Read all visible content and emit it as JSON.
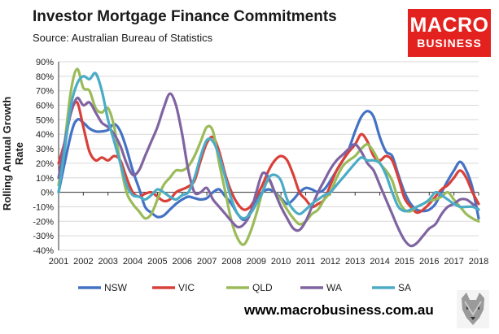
{
  "header": {
    "title": "Investor Mortgage Finance Commitments",
    "subtitle": "Source: Australian Bureau of Statistics"
  },
  "logo": {
    "line1": "MACRO",
    "line2": "BUSINESS"
  },
  "footer": {
    "url": "www.macrobusiness.com.au"
  },
  "colors": {
    "NSW": "#4472c4",
    "VIC": "#d9403a",
    "QLD": "#9bbb59",
    "WA": "#8064a2",
    "SA": "#4bacc6"
  },
  "chart_data": {
    "type": "line",
    "title": "Investor Mortgage Finance Commitments",
    "ylabel": "Rolling Annual Growth Rate",
    "xlabel": "",
    "xlim": [
      2001,
      2018
    ],
    "ylim": [
      -40,
      90
    ],
    "x_ticks": [
      "2001",
      "2002",
      "2003",
      "2004",
      "2005",
      "2006",
      "2007",
      "2008",
      "2009",
      "2010",
      "2011",
      "2012",
      "2013",
      "2014",
      "2015",
      "2016",
      "2017",
      "2018"
    ],
    "y_ticks": [
      "90%",
      "80%",
      "70%",
      "60%",
      "50%",
      "40%",
      "30%",
      "20%",
      "10%",
      "0%",
      "-10%",
      "-20%",
      "-30%",
      "-40%"
    ],
    "grid": "horizontal",
    "legend_position": "bottom",
    "series": [
      {
        "name": "NSW",
        "color": "#4472c4",
        "x": [
          2001,
          2001.5,
          2001.75,
          2002,
          2002.25,
          2002.5,
          2002.75,
          2003,
          2003.25,
          2003.5,
          2003.75,
          2004,
          2004.25,
          2004.5,
          2004.75,
          2005,
          2005.25,
          2005.5,
          2005.75,
          2006,
          2006.25,
          2006.5,
          2006.75,
          2007,
          2007.25,
          2007.5,
          2007.75,
          2008,
          2008.25,
          2008.5,
          2008.75,
          2009,
          2009.25,
          2009.5,
          2009.75,
          2010,
          2010.25,
          2010.5,
          2010.75,
          2011,
          2011.25,
          2011.5,
          2011.75,
          2012,
          2012.25,
          2012.5,
          2012.75,
          2013,
          2013.25,
          2013.5,
          2013.75,
          2014,
          2014.25,
          2014.5,
          2014.75,
          2015,
          2015.25,
          2015.5,
          2015.75,
          2016,
          2016.25,
          2016.5,
          2016.75,
          2017,
          2017.25,
          2017.5,
          2017.75,
          2018
        ],
        "y": [
          0,
          40,
          50,
          48,
          44,
          42,
          42,
          43,
          47,
          42,
          30,
          15,
          3,
          -10,
          -14,
          -17,
          -16,
          -12,
          -8,
          -5,
          -3,
          -4,
          -5,
          -4,
          0,
          2,
          -3,
          -8,
          -15,
          -19,
          -14,
          -5,
          0,
          2,
          0,
          -4,
          -8,
          -5,
          0,
          3,
          2,
          0,
          2,
          8,
          15,
          22,
          30,
          42,
          52,
          56,
          52,
          38,
          28,
          25,
          12,
          0,
          -8,
          -12,
          -13,
          -12,
          -8,
          0,
          8,
          15,
          21,
          15,
          3,
          -18
        ]
      },
      {
        "name": "VIC",
        "color": "#d9403a",
        "x": [
          2001,
          2001.25,
          2001.5,
          2001.75,
          2002,
          2002.25,
          2002.5,
          2002.75,
          2003,
          2003.25,
          2003.5,
          2003.75,
          2004,
          2004.25,
          2004.5,
          2004.75,
          2005,
          2005.25,
          2005.5,
          2005.75,
          2006,
          2006.25,
          2006.5,
          2006.75,
          2007,
          2007.25,
          2007.5,
          2007.75,
          2008,
          2008.25,
          2008.5,
          2008.75,
          2009,
          2009.25,
          2009.5,
          2009.75,
          2010,
          2010.25,
          2010.5,
          2010.75,
          2011,
          2011.25,
          2011.5,
          2011.75,
          2012,
          2012.25,
          2012.5,
          2012.75,
          2013,
          2013.25,
          2013.5,
          2013.75,
          2014,
          2014.25,
          2014.5,
          2014.75,
          2015,
          2015.25,
          2015.5,
          2015.75,
          2016,
          2016.25,
          2016.5,
          2016.75,
          2017,
          2017.25,
          2017.5,
          2017.75,
          2018
        ],
        "y": [
          20,
          35,
          55,
          62,
          45,
          28,
          22,
          24,
          22,
          25,
          22,
          10,
          0,
          -3,
          -1,
          0,
          -3,
          -6,
          -5,
          0,
          2,
          4,
          8,
          22,
          34,
          38,
          28,
          12,
          0,
          -8,
          -12,
          -10,
          -3,
          5,
          15,
          22,
          25,
          22,
          12,
          0,
          -5,
          -10,
          -8,
          -5,
          5,
          15,
          22,
          28,
          33,
          40,
          35,
          25,
          22,
          25,
          22,
          10,
          -4,
          -10,
          -14,
          -12,
          -8,
          -3,
          2,
          5,
          10,
          15,
          10,
          0,
          -8
        ]
      },
      {
        "name": "QLD",
        "color": "#9bbb59",
        "x": [
          2001,
          2001.25,
          2001.5,
          2001.75,
          2002,
          2002.25,
          2002.5,
          2002.75,
          2003,
          2003.25,
          2003.5,
          2003.75,
          2004,
          2004.25,
          2004.5,
          2004.75,
          2005,
          2005.25,
          2005.5,
          2005.75,
          2006,
          2006.25,
          2006.5,
          2006.75,
          2007,
          2007.25,
          2007.5,
          2007.75,
          2008,
          2008.25,
          2008.5,
          2008.75,
          2009,
          2009.25,
          2009.5,
          2009.75,
          2010,
          2010.25,
          2010.5,
          2010.75,
          2011,
          2011.25,
          2011.5,
          2011.75,
          2012,
          2012.25,
          2012.5,
          2012.75,
          2013,
          2013.25,
          2013.5,
          2013.75,
          2014,
          2014.25,
          2014.5,
          2014.75,
          2015,
          2015.25,
          2015.5,
          2015.75,
          2016,
          2016.25,
          2016.5,
          2016.75,
          2017,
          2017.25,
          2017.5,
          2017.75,
          2018
        ],
        "y": [
          5,
          35,
          70,
          85,
          72,
          70,
          58,
          55,
          58,
          45,
          20,
          0,
          -8,
          -13,
          -18,
          -15,
          -5,
          5,
          10,
          15,
          15,
          18,
          25,
          35,
          45,
          42,
          20,
          0,
          -20,
          -32,
          -36,
          -28,
          -15,
          0,
          8,
          0,
          -5,
          -12,
          -18,
          -22,
          -20,
          -15,
          -12,
          -5,
          0,
          10,
          18,
          22,
          25,
          30,
          33,
          28,
          20,
          15,
          8,
          -5,
          -12,
          -13,
          -10,
          -8,
          -6,
          -5,
          -3,
          0,
          -5,
          -10,
          -15,
          -18,
          -20
        ]
      },
      {
        "name": "WA",
        "color": "#8064a2",
        "x": [
          2001,
          2001.25,
          2001.5,
          2001.75,
          2002,
          2002.25,
          2002.5,
          2002.75,
          2003,
          2003.25,
          2003.5,
          2003.75,
          2004,
          2004.25,
          2004.5,
          2004.75,
          2005,
          2005.25,
          2005.5,
          2005.75,
          2006,
          2006.25,
          2006.5,
          2006.75,
          2007,
          2007.25,
          2007.5,
          2007.75,
          2008,
          2008.25,
          2008.5,
          2008.75,
          2009,
          2009.25,
          2009.5,
          2009.75,
          2010,
          2010.25,
          2010.5,
          2010.75,
          2011,
          2011.25,
          2011.5,
          2011.75,
          2012,
          2012.25,
          2012.5,
          2012.75,
          2013,
          2013.25,
          2013.5,
          2013.75,
          2014,
          2014.25,
          2014.5,
          2014.75,
          2015,
          2015.25,
          2015.5,
          2015.75,
          2016,
          2016.25,
          2016.5,
          2016.75,
          2017,
          2017.25,
          2017.5,
          2017.75,
          2018
        ],
        "y": [
          10,
          35,
          55,
          65,
          60,
          62,
          55,
          48,
          45,
          40,
          32,
          20,
          12,
          15,
          25,
          35,
          45,
          58,
          68,
          60,
          40,
          15,
          0,
          0,
          3,
          -5,
          -10,
          -15,
          -20,
          -24,
          -22,
          -15,
          0,
          13,
          10,
          0,
          -10,
          -18,
          -25,
          -26,
          -20,
          -10,
          0,
          8,
          16,
          22,
          26,
          30,
          33,
          28,
          20,
          15,
          5,
          -5,
          -15,
          -25,
          -33,
          -37,
          -35,
          -30,
          -25,
          -22,
          -15,
          -10,
          -8,
          -5,
          -5,
          -8,
          -12
        ]
      },
      {
        "name": "SA",
        "color": "#4bacc6",
        "x": [
          2001,
          2001.25,
          2001.5,
          2001.75,
          2002,
          2002.25,
          2002.5,
          2002.75,
          2003,
          2003.25,
          2003.5,
          2003.75,
          2004,
          2004.25,
          2004.5,
          2004.75,
          2005,
          2005.25,
          2005.5,
          2005.75,
          2006,
          2006.25,
          2006.5,
          2006.75,
          2007,
          2007.25,
          2007.5,
          2007.75,
          2008,
          2008.25,
          2008.5,
          2008.75,
          2009,
          2009.25,
          2009.5,
          2009.75,
          2010,
          2010.25,
          2010.5,
          2010.75,
          2011,
          2011.25,
          2011.5,
          2011.75,
          2012,
          2012.25,
          2012.5,
          2012.75,
          2013,
          2013.25,
          2013.5,
          2013.75,
          2014,
          2014.25,
          2014.5,
          2014.75,
          2015,
          2015.25,
          2015.5,
          2015.75,
          2016,
          2016.25,
          2016.5,
          2016.75,
          2017,
          2017.25,
          2017.5,
          2017.75,
          2018
        ],
        "y": [
          0,
          30,
          60,
          75,
          80,
          78,
          82,
          70,
          50,
          35,
          20,
          5,
          -2,
          -3,
          -5,
          -2,
          2,
          0,
          -3,
          -5,
          -2,
          0,
          10,
          25,
          36,
          35,
          25,
          10,
          -5,
          -15,
          -18,
          -15,
          -8,
          0,
          10,
          12,
          8,
          -5,
          -12,
          -15,
          -12,
          -8,
          -5,
          -2,
          0,
          5,
          10,
          15,
          20,
          24,
          22,
          22,
          20,
          12,
          0,
          -10,
          -13,
          -12,
          -10,
          -8,
          -5,
          0,
          -2,
          -5,
          -8,
          -10,
          -10,
          -10,
          -12
        ]
      }
    ]
  }
}
